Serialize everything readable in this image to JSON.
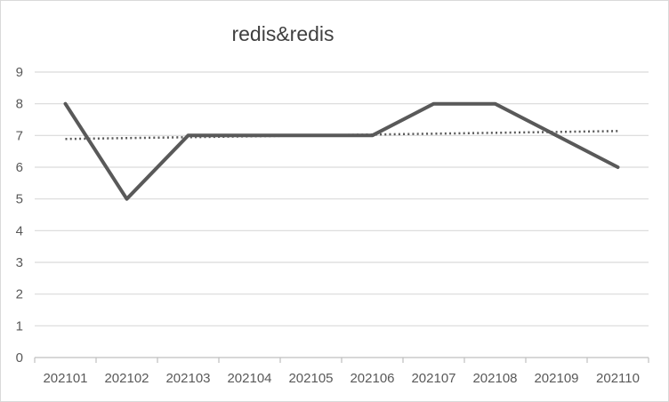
{
  "chart_data": {
    "type": "line",
    "title": "redis&redis",
    "xlabel": "",
    "ylabel": "",
    "categories": [
      "202101",
      "202102",
      "202103",
      "202104",
      "202105",
      "202106",
      "202107",
      "202108",
      "202109",
      "202110"
    ],
    "series": [
      {
        "values": [
          8,
          5,
          7,
          7,
          7,
          7,
          8,
          8,
          7,
          6
        ],
        "color": "#595959",
        "style": "solid"
      }
    ],
    "trendline": {
      "type": "linear",
      "values": [
        6.89,
        7.14
      ],
      "color": "#595959",
      "style": "dotted"
    },
    "ylim": [
      0,
      9
    ],
    "yticks": [
      "0",
      "1",
      "2",
      "3",
      "4",
      "5",
      "6",
      "7",
      "8",
      "9"
    ],
    "grid": true,
    "legend": "none",
    "colors": {
      "gridline": "#d9d9d9",
      "axis": "#bfbfbf",
      "text": "#595959",
      "title": "#404040"
    }
  }
}
